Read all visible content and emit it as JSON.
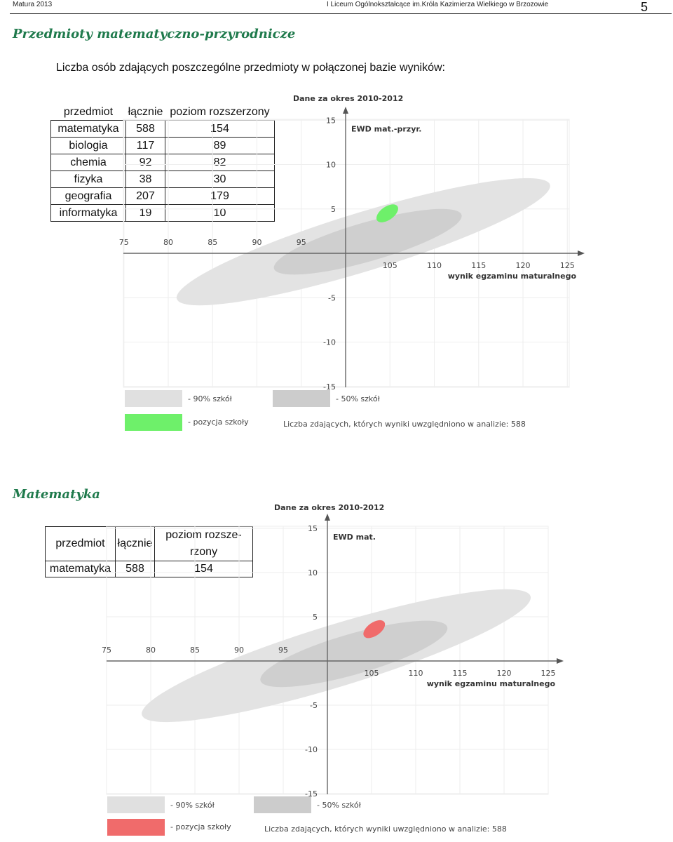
{
  "header": {
    "left": "Matura 2013",
    "center": "I Liceum Ogólnokształcące im.Króla Kazimierza Wielkiego w Brzozowie",
    "page_number": "5"
  },
  "section1": {
    "title": "Przedmioty matematyczno-przyrodnicze",
    "intro": "Liczba osób zdających poszczególne przedmioty w połączonej bazie wyników:",
    "table": {
      "headers": [
        "przedmiot",
        "łącznie",
        "poziom rozszerzony"
      ],
      "rows": [
        [
          "matematyka",
          "588",
          "154"
        ],
        [
          "biologia",
          "117",
          "89"
        ],
        [
          "chemia",
          "92",
          "82"
        ],
        [
          "fizyka",
          "38",
          "30"
        ],
        [
          "geografia",
          "207",
          "179"
        ],
        [
          "informatyka",
          "19",
          "10"
        ]
      ]
    }
  },
  "section2": {
    "title": "Matematyka",
    "table": {
      "headers": [
        "przedmiot",
        "łącznie",
        "poziom rozsze-",
        "rzony"
      ],
      "rows": [
        [
          "matematyka",
          "588",
          "154"
        ]
      ]
    }
  },
  "chart_data": [
    {
      "type": "scatter",
      "title": "Dane za okres 2010-2012",
      "ylabel": "EWD mat.-przyr.",
      "xlabel": "wynik egzaminu maturalnego",
      "x_ticks": [
        "75",
        "80",
        "85",
        "90",
        "95",
        "105",
        "110",
        "115",
        "120",
        "125"
      ],
      "y_ticks": [
        "15",
        "10",
        "5",
        "-5",
        "-10",
        "-15"
      ],
      "xlim": [
        75,
        125
      ],
      "ylim": [
        -15,
        15
      ],
      "grid": true,
      "ellipses": [
        {
          "name": "90% szkół",
          "cx": 102,
          "cy": 1.3,
          "rx": 22,
          "ry": 3.3,
          "angle_deg": 17,
          "color": "#e3e3e3"
        },
        {
          "name": "50% szkół",
          "cx": 102.5,
          "cy": 1.3,
          "rx": 11,
          "ry": 2.2,
          "angle_deg": 16,
          "color": "#cfcfcf"
        }
      ],
      "school_position": {
        "name": "pozycja szkoły",
        "x": 104.7,
        "y": 4.5,
        "color": "#6ef06a"
      },
      "legend": [
        "- 90% szkół",
        "- 50% szkół",
        "- pozycja szkoły"
      ],
      "legend_colors": [
        "#e0e0e0",
        "#cccccc",
        "#6ef06a"
      ],
      "note": "Liczba zdających, których wyniki uwzględniono w analizie: 588"
    },
    {
      "type": "scatter",
      "title": "Dane za okres 2010-2012",
      "ylabel": "EWD mat.",
      "xlabel": "wynik egzaminu maturalnego",
      "x_ticks": [
        "75",
        "80",
        "85",
        "90",
        "95",
        "105",
        "110",
        "115",
        "120",
        "125"
      ],
      "y_ticks": [
        "15",
        "10",
        "5",
        "-5",
        "-10",
        "-15"
      ],
      "xlim": [
        75,
        125
      ],
      "ylim": [
        -15,
        15
      ],
      "grid": true,
      "ellipses": [
        {
          "name": "90% szkół",
          "cx": 101,
          "cy": 0.6,
          "rx": 23,
          "ry": 3.5,
          "angle_deg": 17,
          "color": "#e3e3e3"
        },
        {
          "name": "50% szkół",
          "cx": 103,
          "cy": 0.8,
          "rx": 11,
          "ry": 2.3,
          "angle_deg": 16,
          "color": "#cfcfcf"
        }
      ],
      "school_position": {
        "name": "pozycja szkoły",
        "x": 105.3,
        "y": 3.6,
        "color": "#f06b6b"
      },
      "legend": [
        "- 90% szkół",
        "- 50% szkół",
        "- pozycja szkoły"
      ],
      "legend_colors": [
        "#e0e0e0",
        "#cccccc",
        "#f06b6b"
      ],
      "note": "Liczba zdających, których wyniki uwzględniono w analizie: 588"
    }
  ]
}
